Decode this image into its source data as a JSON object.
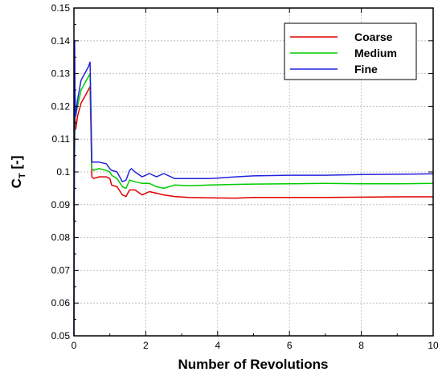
{
  "chart_data": {
    "type": "line",
    "xlabel": "Number of Revolutions",
    "ylabel_main": "C",
    "ylabel_sub": "T",
    "ylabel_unit": " [-]",
    "xlim": [
      0,
      10
    ],
    "ylim": [
      0.05,
      0.15
    ],
    "xticks": [
      0,
      2,
      4,
      6,
      8,
      10
    ],
    "xtick_labels": [
      "0",
      "2",
      "4",
      "6",
      "8",
      "10"
    ],
    "yticks": [
      0.05,
      0.06,
      0.07,
      0.08,
      0.09,
      0.1,
      0.11,
      0.12,
      0.13,
      0.14,
      0.15
    ],
    "ytick_labels": [
      "0.05",
      "0.06",
      "0.07",
      "0.08",
      "0.09",
      "0.1",
      "0.11",
      "0.12",
      "0.13",
      "0.14",
      "0.15"
    ],
    "grid": true,
    "legend_position": "top-right",
    "series": [
      {
        "name": "Coarse",
        "color": "#e00000",
        "x": [
          0,
          0.03,
          0.05,
          0.1,
          0.2,
          0.3,
          0.4,
          0.45,
          0.5,
          0.55,
          0.7,
          0.9,
          1.0,
          1.05,
          1.2,
          1.35,
          1.45,
          1.55,
          1.7,
          1.9,
          2.1,
          2.3,
          2.5,
          2.8,
          3.2,
          3.8,
          4.5,
          5.0,
          6.0,
          7.0,
          8.0,
          9.0,
          10.0
        ],
        "y": [
          0.09,
          0.118,
          0.113,
          0.117,
          0.121,
          0.123,
          0.125,
          0.126,
          0.0985,
          0.098,
          0.0985,
          0.0985,
          0.098,
          0.096,
          0.0955,
          0.093,
          0.0925,
          0.0945,
          0.0945,
          0.093,
          0.094,
          0.0935,
          0.093,
          0.0925,
          0.0922,
          0.0921,
          0.092,
          0.0922,
          0.0922,
          0.0922,
          0.0923,
          0.0924,
          0.0924
        ]
      },
      {
        "name": "Medium",
        "color": "#00cc00",
        "x": [
          0,
          0.03,
          0.05,
          0.1,
          0.2,
          0.3,
          0.4,
          0.45,
          0.5,
          0.55,
          0.7,
          0.9,
          1.0,
          1.05,
          1.2,
          1.35,
          1.45,
          1.55,
          1.7,
          1.9,
          2.1,
          2.3,
          2.5,
          2.8,
          3.2,
          3.8,
          4.5,
          5.0,
          6.0,
          7.0,
          8.0,
          9.0,
          10.0
        ],
        "y": [
          0.085,
          0.121,
          0.117,
          0.12,
          0.125,
          0.127,
          0.129,
          0.13,
          0.101,
          0.1005,
          0.101,
          0.1005,
          0.1,
          0.099,
          0.098,
          0.0955,
          0.095,
          0.0975,
          0.097,
          0.0965,
          0.0965,
          0.0955,
          0.095,
          0.096,
          0.0958,
          0.096,
          0.0962,
          0.0963,
          0.0964,
          0.0965,
          0.0964,
          0.0964,
          0.0965
        ]
      },
      {
        "name": "Fine",
        "color": "#2222dd",
        "x": [
          0,
          0.02,
          0.03,
          0.05,
          0.1,
          0.2,
          0.3,
          0.4,
          0.45,
          0.5,
          0.55,
          0.7,
          0.9,
          1.0,
          1.05,
          1.2,
          1.35,
          1.45,
          1.55,
          1.6,
          1.7,
          1.9,
          2.0,
          2.1,
          2.3,
          2.5,
          2.8,
          3.2,
          3.8,
          4.5,
          5.0,
          6.0,
          7.0,
          8.0,
          9.0,
          10.0
        ],
        "y": [
          0.05,
          0.14,
          0.125,
          0.117,
          0.122,
          0.128,
          0.13,
          0.132,
          0.1335,
          0.103,
          0.103,
          0.103,
          0.1025,
          0.101,
          0.1005,
          0.1,
          0.097,
          0.0975,
          0.1005,
          0.101,
          0.1,
          0.0985,
          0.099,
          0.0995,
          0.0985,
          0.0995,
          0.098,
          0.098,
          0.098,
          0.0985,
          0.0988,
          0.099,
          0.099,
          0.0992,
          0.0993,
          0.0994
        ]
      }
    ]
  }
}
